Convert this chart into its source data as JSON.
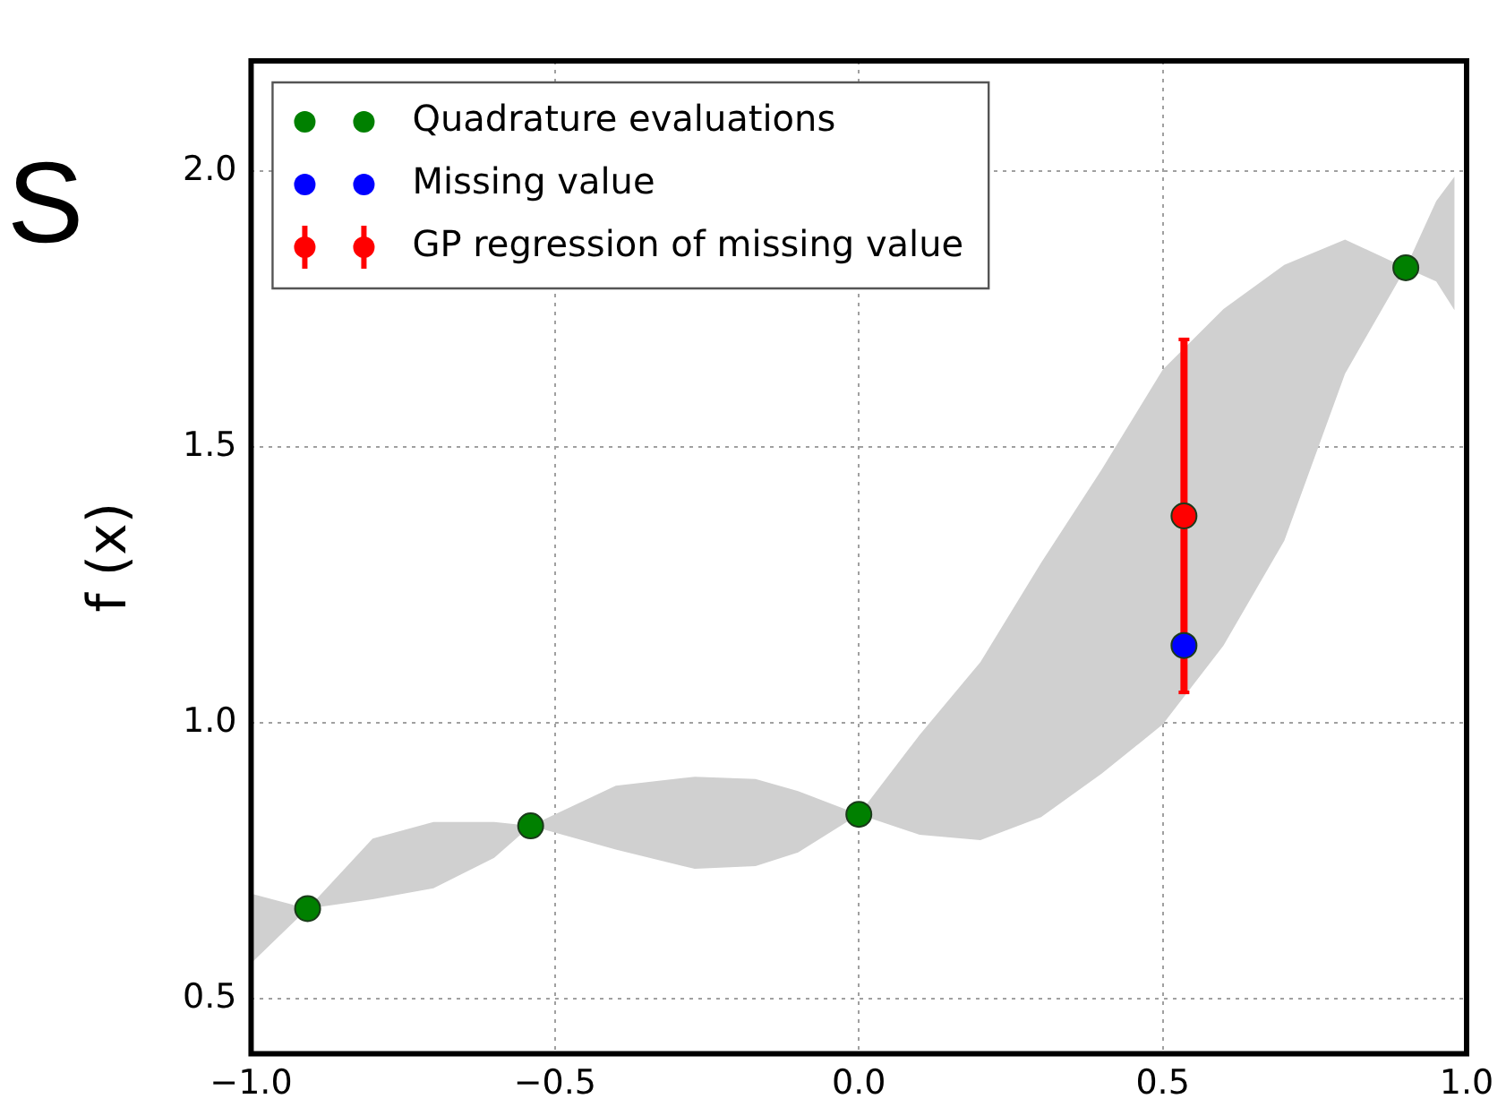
{
  "chart_data": {
    "type": "scatter",
    "ylabel": "f (x)",
    "annotations": [
      "S"
    ],
    "xlim": [
      -1.0,
      1.0
    ],
    "xticks": [
      {
        "value": -1.0,
        "label": "−1.0"
      },
      {
        "value": -0.5,
        "label": "−0.5"
      },
      {
        "value": 0,
        "label": "0.0"
      },
      0.5,
      {
        "value": 1.0,
        "label": "1.0"
      }
    ],
    "ylim": [
      0.4,
      2.2
    ],
    "yticks": [
      0.5,
      {
        "value": 1.0,
        "label": "1.0"
      },
      1.5,
      {
        "value": 2.0,
        "label": "2.0"
      }
    ],
    "grid": true,
    "legend": "top left",
    "marker": "circle",
    "series": [
      {
        "type": "area",
        "color": "#d0d0d0",
        "x": [
          -1.0,
          -0.907,
          -0.8,
          -0.7,
          -0.6,
          -0.54,
          -0.4,
          -0.27,
          -0.17,
          -0.1,
          0,
          0.1,
          0.2,
          0.3,
          0.4,
          0.5,
          0.6,
          0.7,
          0.8,
          0.9,
          0.95,
          0.98
        ],
        "values": [
          null,
          null,
          null,
          null,
          null,
          null,
          null,
          null,
          null,
          null,
          null,
          null,
          null,
          null,
          null,
          null,
          null,
          null,
          null,
          null,
          null,
          null
        ],
        "upper": [
          0.69,
          0.663,
          0.79,
          0.82,
          0.82,
          0.813,
          0.886,
          0.902,
          0.898,
          0.876,
          0.834,
          0.978,
          1.11,
          1.29,
          1.46,
          1.64,
          1.75,
          1.83,
          1.876,
          1.825,
          1.946,
          1.99
        ],
        "lower": [
          0.564,
          0.663,
          0.68,
          0.7,
          0.755,
          0.813,
          0.77,
          0.735,
          0.74,
          0.765,
          0.834,
          0.797,
          0.787,
          0.829,
          0.908,
          0.997,
          1.14,
          1.33,
          1.633,
          1.825,
          1.8,
          1.748
        ]
      },
      {
        "type": "scatter",
        "name": "Quadrature evaluations",
        "color": "#008000",
        "x": [
          -0.907,
          -0.54,
          0,
          0.9
        ],
        "values": [
          0.663,
          0.813,
          0.834,
          1.825
        ]
      },
      {
        "type": "scatter",
        "name": "Missing value",
        "color": "#0000ff",
        "x": [
          0.535
        ],
        "values": [
          1.14
        ]
      },
      {
        "type": "scatter",
        "name": "GP regression of missing value",
        "color": "#ff0000",
        "x": [
          0.535
        ],
        "values": [
          1.375
        ],
        "errors": [
          0.32
        ]
      }
    ]
  }
}
